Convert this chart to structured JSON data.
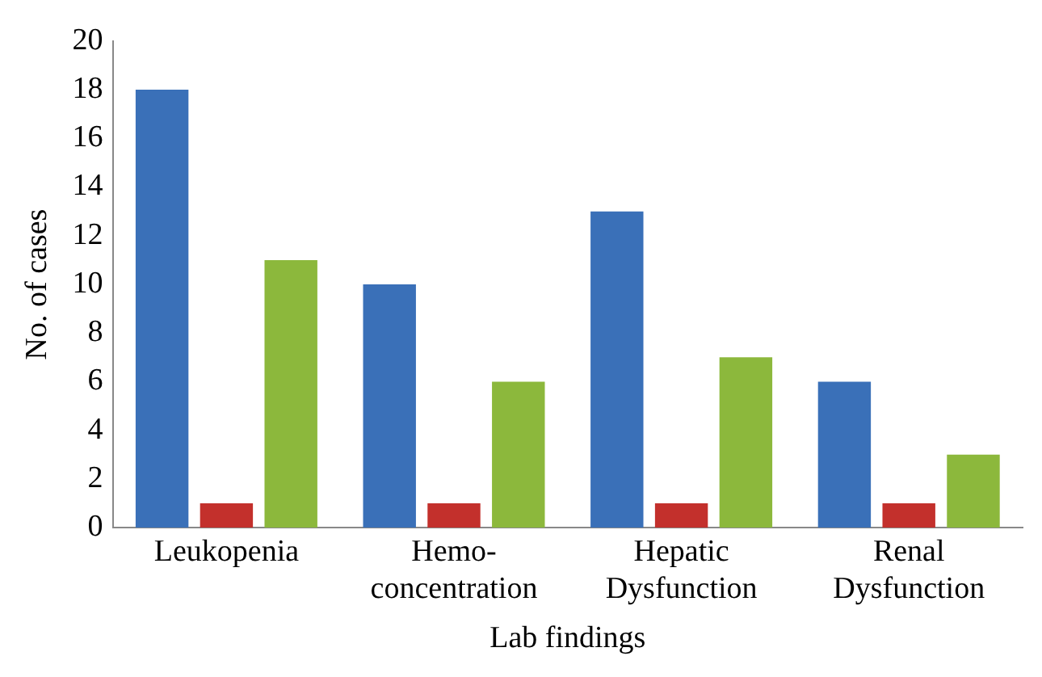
{
  "chart_data": {
    "type": "bar",
    "xlabel": "Lab findings",
    "ylabel": "No. of cases",
    "categories": [
      "Leukopenia",
      "Hemo-concentration",
      "Hepatic Dysfunction",
      "Renal Dysfunction"
    ],
    "series": [
      {
        "color": "#3a70b8",
        "values": [
          18,
          10,
          13,
          6
        ]
      },
      {
        "color": "#c3302c",
        "values": [
          1,
          1,
          1,
          1
        ]
      },
      {
        "color": "#8cb83c",
        "values": [
          11,
          6,
          7,
          3
        ]
      }
    ],
    "ylim": [
      0,
      20
    ],
    "yticks": [
      0,
      2,
      4,
      6,
      8,
      10,
      12,
      14,
      16,
      18,
      20
    ],
    "grid": false,
    "legend": false
  }
}
